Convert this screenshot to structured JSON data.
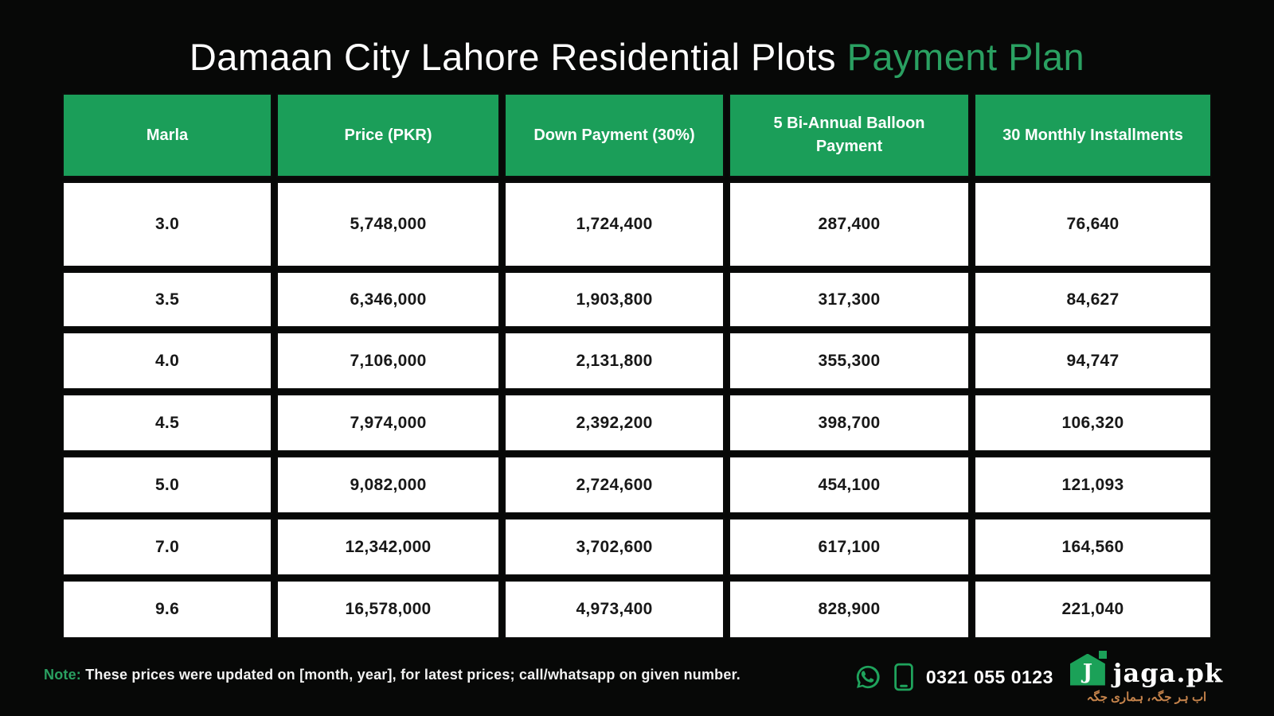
{
  "title": {
    "main": "Damaan City Lahore Residential Plots ",
    "highlight": "Payment Plan"
  },
  "table": {
    "headers": [
      "Marla",
      "Price (PKR)",
      "Down Payment (30%)",
      "5 Bi-Annual Balloon Payment",
      "30 Monthly Installments"
    ],
    "rows": [
      [
        "3.0",
        "5,748,000",
        "1,724,400",
        "287,400",
        "76,640"
      ],
      [
        "3.5",
        "6,346,000",
        "1,903,800",
        "317,300",
        "84,627"
      ],
      [
        "4.0",
        "7,106,000",
        "2,131,800",
        "355,300",
        "94,747"
      ],
      [
        "4.5",
        "7,974,000",
        "2,392,200",
        "398,700",
        "106,320"
      ],
      [
        "5.0",
        "9,082,000",
        "2,724,600",
        "454,100",
        "121,093"
      ],
      [
        "7.0",
        "12,342,000",
        "3,702,600",
        "617,100",
        "164,560"
      ],
      [
        "9.6",
        "16,578,000",
        "4,973,400",
        "828,900",
        "221,040"
      ]
    ]
  },
  "footer": {
    "note_label": "Note:",
    "note_text": " These prices were updated on [month, year], for latest prices; call/whatsapp on given number.",
    "phone_number": "0321 055 0123",
    "whatsapp_icon": "whatsapp-icon",
    "mobile_icon": "mobile-phone-icon"
  },
  "brand": {
    "logo_letter": "J",
    "logo_text": "jaga.pk",
    "tagline_urdu": "اب ہر جگہ، ہماری جگہ"
  },
  "colors": {
    "background": "#070807",
    "header_green": "#1b9e59",
    "accent_green": "#2aa061",
    "icon_green": "#1fa35c",
    "tagline_orange": "#c5834b"
  }
}
